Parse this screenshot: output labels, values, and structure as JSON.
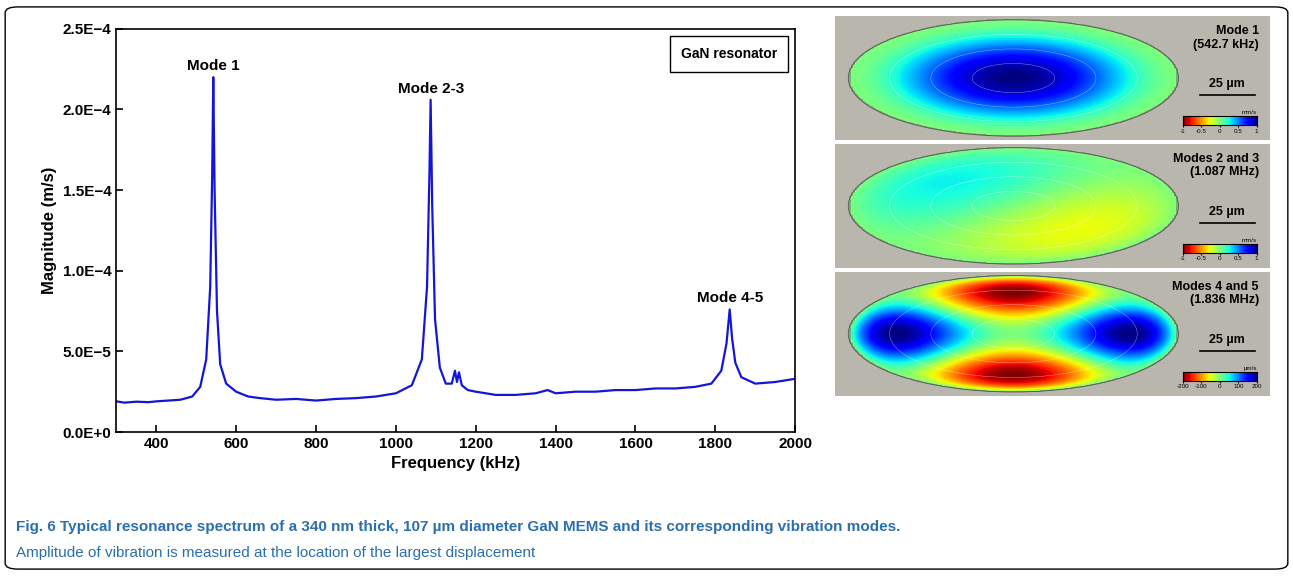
{
  "chart_data": {
    "type": "line",
    "xlabel": "Frequency (kHz)",
    "ylabel": "Magnitude (m/s)",
    "x": [
      300,
      320,
      350,
      380,
      400,
      430,
      460,
      490,
      510,
      525,
      535,
      540,
      542.7,
      546,
      552,
      560,
      575,
      600,
      630,
      660,
      700,
      750,
      800,
      850,
      900,
      950,
      1000,
      1040,
      1065,
      1078,
      1084,
      1087,
      1091,
      1098,
      1110,
      1125,
      1140,
      1148,
      1153,
      1158,
      1165,
      1180,
      1200,
      1250,
      1300,
      1350,
      1380,
      1400,
      1450,
      1500,
      1550,
      1600,
      1650,
      1700,
      1750,
      1790,
      1815,
      1828,
      1836,
      1842,
      1850,
      1865,
      1900,
      1950,
      2000
    ],
    "series": [
      {
        "name": "GaN resonator",
        "color": "#1515d8",
        "values": [
          1.9e-05,
          1.82e-05,
          1.88e-05,
          1.85e-05,
          1.9e-05,
          1.95e-05,
          2e-05,
          2.2e-05,
          2.8e-05,
          4.5e-05,
          9e-05,
          0.00016,
          0.00022,
          0.00015,
          7.5e-05,
          4.2e-05,
          3e-05,
          2.5e-05,
          2.2e-05,
          2.1e-05,
          2e-05,
          2.05e-05,
          1.95e-05,
          2.05e-05,
          2.1e-05,
          2.2e-05,
          2.4e-05,
          2.9e-05,
          4.5e-05,
          9e-05,
          0.00016,
          0.000206,
          0.00014,
          7e-05,
          4e-05,
          3e-05,
          3e-05,
          3.8e-05,
          3.1e-05,
          3.7e-05,
          2.9e-05,
          2.6e-05,
          2.5e-05,
          2.3e-05,
          2.3e-05,
          2.4e-05,
          2.6e-05,
          2.4e-05,
          2.5e-05,
          2.5e-05,
          2.6e-05,
          2.6e-05,
          2.7e-05,
          2.7e-05,
          2.8e-05,
          3e-05,
          3.8e-05,
          5.5e-05,
          7.6e-05,
          5.8e-05,
          4.3e-05,
          3.4e-05,
          3e-05,
          3.1e-05,
          3.3e-05
        ]
      }
    ],
    "xlim": [
      300,
      2000
    ],
    "xticks": [
      400,
      600,
      800,
      1000,
      1200,
      1400,
      1600,
      1800,
      2000
    ],
    "ylim": [
      0,
      0.00025
    ],
    "yticks": [
      {
        "value": 0,
        "label": "0.0E+0"
      },
      {
        "value": 5e-05,
        "label": "5.0E−5"
      },
      {
        "value": 0.0001,
        "label": "1.0E−4"
      },
      {
        "value": 0.00015,
        "label": "1.5E−4"
      },
      {
        "value": 0.0002,
        "label": "2.0E−4"
      },
      {
        "value": 0.00025,
        "label": "2.5E−4"
      }
    ],
    "annotations": [
      {
        "text": "Mode 1",
        "x": 542.7,
        "y": 0.00022
      },
      {
        "text": "Mode 2-3",
        "x": 1087,
        "y": 0.000206
      },
      {
        "text": "Mode 4-5",
        "x": 1836,
        "y": 7.6e-05
      }
    ],
    "legend": "upper right",
    "grid": false
  },
  "mode_panels": [
    {
      "label": "Mode 1",
      "frequency": "(542.7 kHz)",
      "scale_bar": "25 µm",
      "colorbar": {
        "unit": "mm/s",
        "range": [
          -1,
          1
        ],
        "ticks": [
          -1,
          -0.5,
          0,
          0.5,
          1
        ]
      }
    },
    {
      "label": "Modes 2 and 3",
      "frequency": "(1.087 MHz)",
      "scale_bar": "25 µm",
      "colorbar": {
        "unit": "mm/s",
        "range": [
          -1,
          1
        ],
        "ticks": [
          -1,
          -0.5,
          0,
          0.5,
          1
        ]
      }
    },
    {
      "label": "Modes 4 and 5",
      "frequency": "(1.836 MHz)",
      "scale_bar": "25 µm",
      "colorbar": {
        "unit": "µm/s",
        "range": [
          -200,
          200
        ],
        "ticks": [
          -200,
          -100,
          0,
          100,
          200
        ]
      }
    }
  ],
  "caption": {
    "label": "Fig. 6",
    "title": "Typical resonance spectrum of a 340 nm thick, 107 µm diameter GaN MEMS and its corresponding vibration modes.",
    "text": "Amplitude of vibration is measured at the location of the largest displacement"
  }
}
